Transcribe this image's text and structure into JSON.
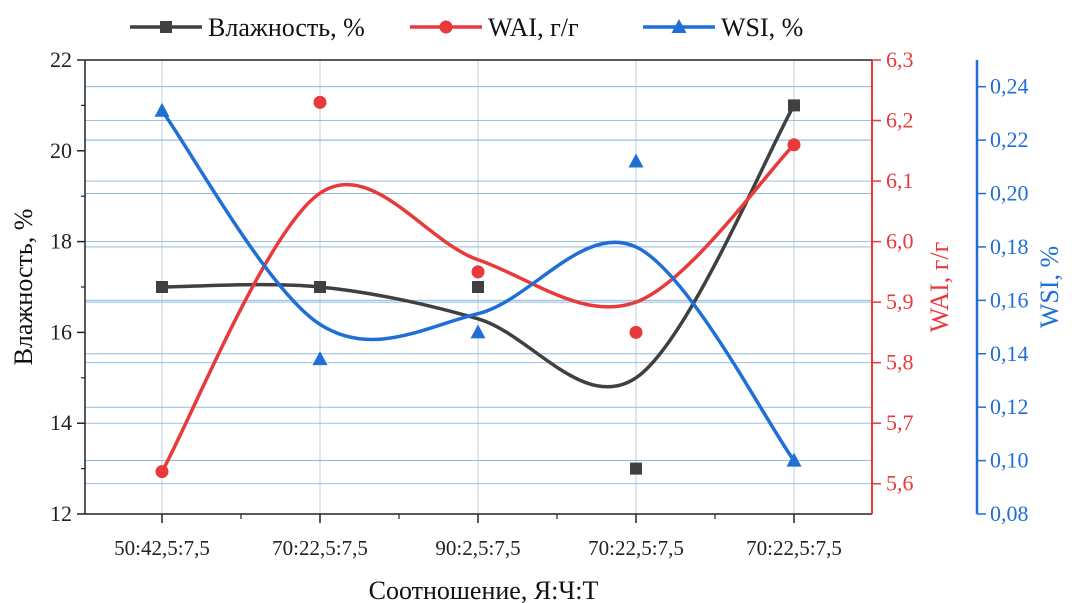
{
  "chart_data": {
    "type": "line",
    "categories": [
      "50:42,5:7,5",
      "70:22,5:7,5",
      "90:2,5:7,5",
      "70:22,5:7,5",
      "70:22,5:7,5"
    ],
    "xlabel": "Соотношение, Я:Ч:Т",
    "axes": {
      "y1": {
        "label": "Влажность, %",
        "ylim": [
          12,
          22
        ],
        "ticks": [
          "12",
          "14",
          "16",
          "18",
          "20",
          "22"
        ],
        "color": "#222222"
      },
      "y2": {
        "label": "WAI, г/г",
        "ylim": [
          5.55,
          6.3
        ],
        "ticks": [
          "5,6",
          "5,7",
          "5,8",
          "5,9",
          "6,0",
          "6,1",
          "6,2",
          "6,3"
        ],
        "color": "#e8393b"
      },
      "y3": {
        "label": "WSI, %",
        "ylim": [
          0.08,
          0.25
        ],
        "ticks": [
          "0,08",
          "0,10",
          "0,12",
          "0,14",
          "0,16",
          "0,18",
          "0,20",
          "0,22",
          "0,24"
        ],
        "color": "#1f6fd6"
      }
    },
    "series": [
      {
        "name": "Влажность, %",
        "axis": "y1",
        "marker": "square",
        "color": "#404040",
        "values": [
          17.0,
          17.0,
          17.0,
          13.0,
          21.0
        ],
        "fit": [
          17.0,
          17.0,
          16.3,
          15.0,
          21.0
        ]
      },
      {
        "name": "WAI, г/г",
        "axis": "y2",
        "marker": "circle",
        "color": "#e8393b",
        "values": [
          5.62,
          6.23,
          5.95,
          5.85,
          6.16
        ],
        "fit": [
          5.62,
          6.08,
          5.97,
          5.9,
          6.16
        ]
      },
      {
        "name": "WSI, %",
        "axis": "y3",
        "marker": "triangle",
        "color": "#1f6fd6",
        "values": [
          0.231,
          0.138,
          0.148,
          0.212,
          0.1
        ],
        "fit": [
          0.231,
          0.151,
          0.155,
          0.18,
          0.1
        ]
      }
    ],
    "grid": true,
    "legend_position": "top"
  }
}
